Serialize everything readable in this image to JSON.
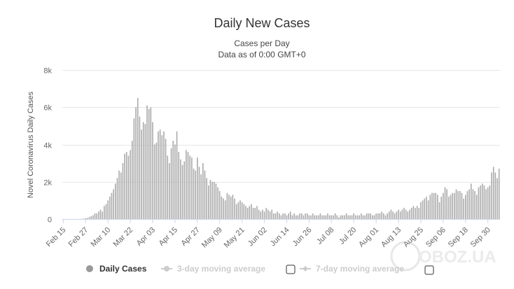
{
  "chart_data": {
    "type": "bar",
    "title": "Daily New Cases",
    "subtitle_lines": [
      "Cases per Day",
      "Data as of 0:00 GMT+0"
    ],
    "ylabel": "Novel Coronavirus Daily Cases",
    "xlabel": "",
    "ylim": [
      0,
      8000
    ],
    "y_ticks": [
      0,
      2000,
      4000,
      6000,
      8000
    ],
    "y_tick_labels": [
      "0",
      "2k",
      "4k",
      "6k",
      "8k"
    ],
    "x_tick_labels": [
      "Feb 15",
      "Feb 27",
      "Mar 10",
      "Mar 22",
      "Apr 03",
      "Apr 15",
      "Apr 27",
      "May 09",
      "May 21",
      "Jun 02",
      "Jun 14",
      "Jun 26",
      "Jul 08",
      "Jul 20",
      "Aug 01",
      "Aug 13",
      "Aug 25",
      "Sep 06",
      "Sep 18",
      "Sep 30"
    ],
    "bar_color": "#aaaaaa",
    "series": [
      {
        "name": "Daily Cases",
        "values": [
          0,
          0,
          0,
          0,
          0,
          0,
          0,
          0,
          0,
          0,
          10,
          20,
          40,
          60,
          100,
          150,
          200,
          300,
          300,
          400,
          500,
          400,
          700,
          800,
          1000,
          1200,
          1400,
          1600,
          1900,
          2200,
          2600,
          2500,
          3000,
          3500,
          3600,
          3400,
          3700,
          4200,
          5400,
          6000,
          6500,
          5500,
          4800,
          5200,
          5100,
          6100,
          5900,
          6000,
          5200,
          4000,
          4100,
          4700,
          4800,
          4500,
          4700,
          4300,
          3400,
          3000,
          3800,
          4200,
          4000,
          4700,
          3600,
          3200,
          2900,
          3100,
          3700,
          3600,
          3400,
          3300,
          2700,
          2600,
          3300,
          2800,
          2400,
          3000,
          2600,
          2200,
          1800,
          2100,
          2000,
          2000,
          1900,
          1700,
          1500,
          1200,
          1100,
          1000,
          1400,
          1300,
          1200,
          1300,
          1100,
          800,
          900,
          1000,
          900,
          800,
          700,
          600,
          700,
          800,
          600,
          600,
          700,
          500,
          400,
          500,
          400,
          600,
          500,
          400,
          500,
          300,
          300,
          400,
          300,
          200,
          300,
          300,
          200,
          300,
          400,
          200,
          300,
          200,
          200,
          300,
          300,
          200,
          300,
          300,
          200,
          200,
          300,
          200,
          200,
          200,
          300,
          200,
          200,
          200,
          300,
          200,
          200,
          200,
          300,
          200,
          100,
          200,
          200,
          200,
          300,
          200,
          200,
          200,
          300,
          200,
          200,
          200,
          300,
          200,
          200,
          300,
          300,
          300,
          200,
          200,
          300,
          300,
          300,
          400,
          300,
          200,
          300,
          400,
          500,
          400,
          300,
          400,
          500,
          400,
          500,
          600,
          500,
          400,
          500,
          600,
          700,
          600,
          700,
          600,
          900,
          1000,
          1100,
          1200,
          1000,
          1300,
          1400,
          1400,
          1400,
          1300,
          900,
          1200,
          1400,
          1700,
          1600,
          1200,
          1300,
          1400,
          1400,
          1600,
          1500,
          1500,
          1400,
          1100,
          1300,
          1500,
          1600,
          1900,
          1600,
          1500,
          1300,
          1700,
          1800,
          1900,
          1800,
          1600,
          1700,
          1800,
          2500,
          2800,
          2500,
          2200,
          2700
        ]
      }
    ],
    "legend": [
      {
        "label": "Daily Cases",
        "state": "active",
        "marker": "circle"
      },
      {
        "label": "3-day moving average",
        "state": "inactive",
        "marker": "line-circle"
      },
      {
        "label": "7-day moving average",
        "state": "inactive",
        "marker": "line-diamond"
      }
    ],
    "grid": true,
    "legend_position": "bottom",
    "watermark": "OBOZ.UA"
  }
}
